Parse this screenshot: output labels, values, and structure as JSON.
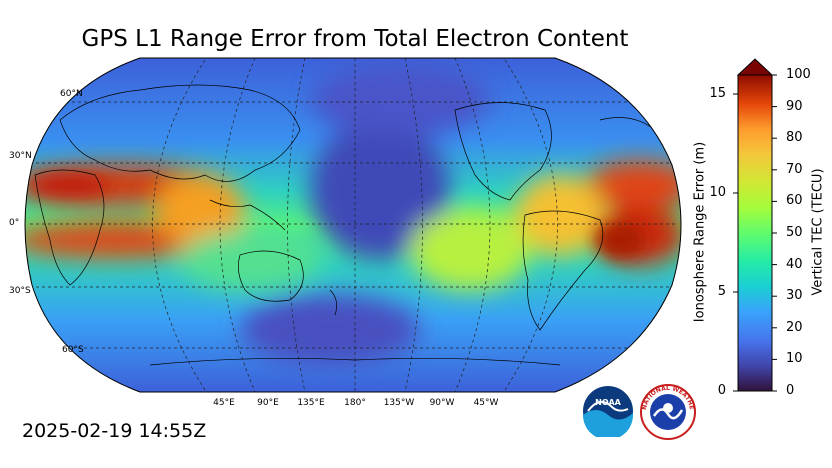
{
  "title": "GPS L1 Range Error from Total Electron Content",
  "timestamp": "2025-02-19 14:55Z",
  "map": {
    "projection": "robinson",
    "center_longitude": 180,
    "lat_labels": [
      "60°N",
      "30°N",
      "0°",
      "30°S",
      "60°S"
    ],
    "lon_labels": [
      "45°E",
      "90°E",
      "135°E",
      "180°",
      "135°W",
      "90°W",
      "45°W"
    ]
  },
  "colorbar": {
    "left_axis_label": "Ionosphere Range Error (m)",
    "left_ticks": [
      "0",
      "5",
      "10",
      "15"
    ],
    "right_axis_label": "Vertical TEC (TECU)",
    "right_ticks": [
      "0",
      "10",
      "20",
      "30",
      "40",
      "50",
      "60",
      "70",
      "80",
      "90",
      "100"
    ],
    "extend": "max",
    "colormap": "turbo"
  },
  "logos": {
    "noaa": "NOAA",
    "nws": "NATIONAL WEATHER SERVICE"
  }
}
